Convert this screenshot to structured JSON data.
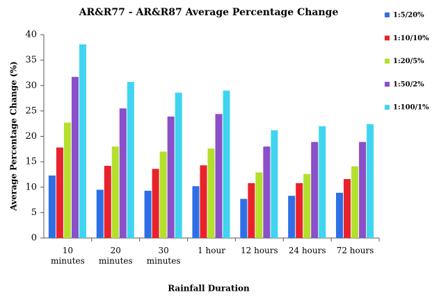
{
  "chart_data": {
    "type": "bar",
    "title": "AR&R77 - AR&R87 Average Percentage Change",
    "xlabel": "Rainfall Duration",
    "ylabel": "Average Percentage Change (%)",
    "categories": [
      "10 minutes",
      "20 minutes",
      "30 minutes",
      "1 hour",
      "12 hours",
      "24 hours",
      "72 hours"
    ],
    "series": [
      {
        "name": "1:5/20%",
        "color": "#2f6fe6",
        "values": [
          12.3,
          9.5,
          9.3,
          10.2,
          7.7,
          8.3,
          8.9
        ]
      },
      {
        "name": "1:10/10%",
        "color": "#e8232b",
        "values": [
          17.8,
          14.2,
          13.6,
          14.3,
          10.8,
          10.8,
          11.6
        ]
      },
      {
        "name": "1:20/5%",
        "color": "#b3e02c",
        "values": [
          22.7,
          18,
          17,
          17.6,
          12.9,
          12.6,
          14.1
        ]
      },
      {
        "name": "1:50/2%",
        "color": "#8b4fca",
        "values": [
          31.7,
          25.5,
          23.9,
          24.4,
          18,
          18.9,
          18.9
        ]
      },
      {
        "name": "1:100/1%",
        "color": "#3fd5f0",
        "values": [
          38.1,
          30.7,
          28.6,
          29,
          21.2,
          22,
          22.4
        ]
      }
    ],
    "ylim": [
      0,
      40
    ],
    "yticks": [
      0,
      5,
      10,
      15,
      20,
      25,
      30,
      35,
      40
    ],
    "legend": "right"
  }
}
